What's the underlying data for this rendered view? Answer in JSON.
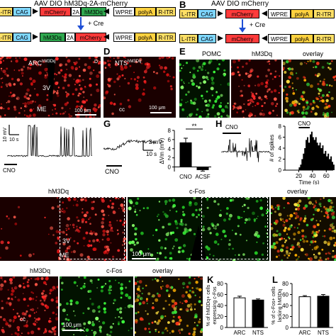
{
  "panelA": {
    "title": "AAV DIO hM3Dq-2A-mCherry",
    "row1": [
      "L-ITR",
      "CAG",
      "mCherry",
      "2A",
      "hM3Dq",
      "WPRE",
      "polyA",
      "R-ITR"
    ],
    "row2": [
      "L-ITR",
      "CAG",
      "hM3Dq",
      "2A",
      "mCherry",
      "WPRE",
      "polyA",
      "R-ITR"
    ],
    "cre": "+ Cre"
  },
  "panelB": {
    "letter": "B",
    "title": "AAV DIO mCherry",
    "row1": [
      "L-ITR",
      "CAG",
      "mCherry",
      "WPRE",
      "polyA",
      "R-ITR"
    ],
    "row2": [
      "L-ITR",
      "CAG",
      "mCherry",
      "WPRE",
      "polyA",
      "R-ITR"
    ],
    "cre": "+ Cre"
  },
  "panelC": {
    "title_main": "ARC",
    "title_sup": "hM3Dq",
    "label_3v": "3V",
    "label_me": "ME",
    "orient": "D",
    "scale": "100 μm"
  },
  "panelD": {
    "letter": "D",
    "title_main": "NTS",
    "title_sup": "hM3Dq",
    "label_cc": "cc",
    "scale": "100 μm"
  },
  "panelE": {
    "letter": "E",
    "pomc": "POMC",
    "hm3dq": "hM3Dq",
    "overlay": "overlay"
  },
  "panelF": {
    "scale_v": "10 mV",
    "scale_t": "10 s",
    "cno": "CNO"
  },
  "panelG": {
    "letter": "G",
    "cno": "CNO",
    "scale_v": "2 mV",
    "scale_t": "10 s",
    "significance": "**",
    "ylabel": "ΔVm (mV)"
  },
  "panelH": {
    "letter": "H",
    "cno_trace": "CNO",
    "cno_hist": "CNO",
    "ylabel": "# of spikes",
    "xlabel": "Time (s)"
  },
  "panelI": {
    "hm3dq": "hM3Dq",
    "cfos": "c-Fos",
    "overlay": "overlay",
    "label_3v": "3V",
    "label_me": "ME",
    "scale": "100 μm"
  },
  "panelJ": {
    "hm3dq": "hM3Dq",
    "cfos": "c-Fos",
    "overlay": "overlay",
    "label_cc": "cc",
    "scale": "100 μm"
  },
  "panelK": {
    "letter": "K",
    "ylabel": "% of hM3Dq+ cells expressing c-Fos"
  },
  "panelL": {
    "letter": "L",
    "ylabel": "% of c-Fos+ cells lacking hM3Dq"
  },
  "chart_data": [
    {
      "type": "bar",
      "panel": "G",
      "categories": [
        "CNO",
        "ACSF"
      ],
      "values": [
        5.3,
        -0.6
      ],
      "errors": [
        1.0,
        0.3
      ],
      "ylabel": "ΔVm (mV)",
      "ylim": [
        -1,
        8
      ],
      "yticks": [
        0,
        2,
        4,
        6,
        8
      ],
      "colors": [
        "#000000",
        "#000000"
      ]
    },
    {
      "type": "area",
      "panel": "H",
      "xlabel": "Time (s)",
      "ylabel": "# of spikes",
      "xlim": [
        0,
        70
      ],
      "xticks": [
        20,
        40,
        60
      ],
      "ylim": [
        0,
        8
      ],
      "yticks": [
        0,
        2,
        4,
        6,
        8
      ],
      "x": [
        0,
        2,
        4,
        6,
        8,
        10,
        12,
        14,
        16,
        18,
        20,
        22,
        24,
        26,
        28,
        30,
        32,
        34,
        36,
        38,
        40,
        42,
        44,
        46,
        48,
        50,
        52,
        54,
        56,
        58,
        60,
        62,
        64,
        66,
        68,
        70
      ],
      "y": [
        0,
        0,
        0,
        0,
        0,
        0,
        0,
        0,
        0,
        0,
        0.5,
        1,
        2,
        3,
        4,
        5.5,
        6,
        5,
        6.5,
        7,
        6,
        5.5,
        6,
        5,
        4.5,
        5,
        4,
        4.5,
        3,
        3.5,
        2.5,
        3,
        2,
        2.5,
        1.5,
        1
      ]
    },
    {
      "type": "bar",
      "panel": "K",
      "categories": [
        "ARC",
        "NTS"
      ],
      "values": [
        54,
        50
      ],
      "errors": [
        3,
        2
      ],
      "ylabel": "% of hM3Dq+ cells expressing c-Fos",
      "ylim": [
        0,
        80
      ],
      "yticks": [
        0,
        20,
        40,
        60,
        80
      ],
      "colors": [
        "#ffffff",
        "#000000"
      ]
    },
    {
      "type": "bar",
      "panel": "L",
      "categories": [
        "ARC",
        "NTS"
      ],
      "values": [
        56,
        57
      ],
      "errors": [
        2,
        3
      ],
      "ylabel": "% of c-Fos+ cells lacking hM3Dq",
      "ylim": [
        0,
        80
      ],
      "yticks": [
        0,
        20,
        40,
        60,
        80
      ],
      "colors": [
        "#ffffff",
        "#000000"
      ]
    }
  ]
}
